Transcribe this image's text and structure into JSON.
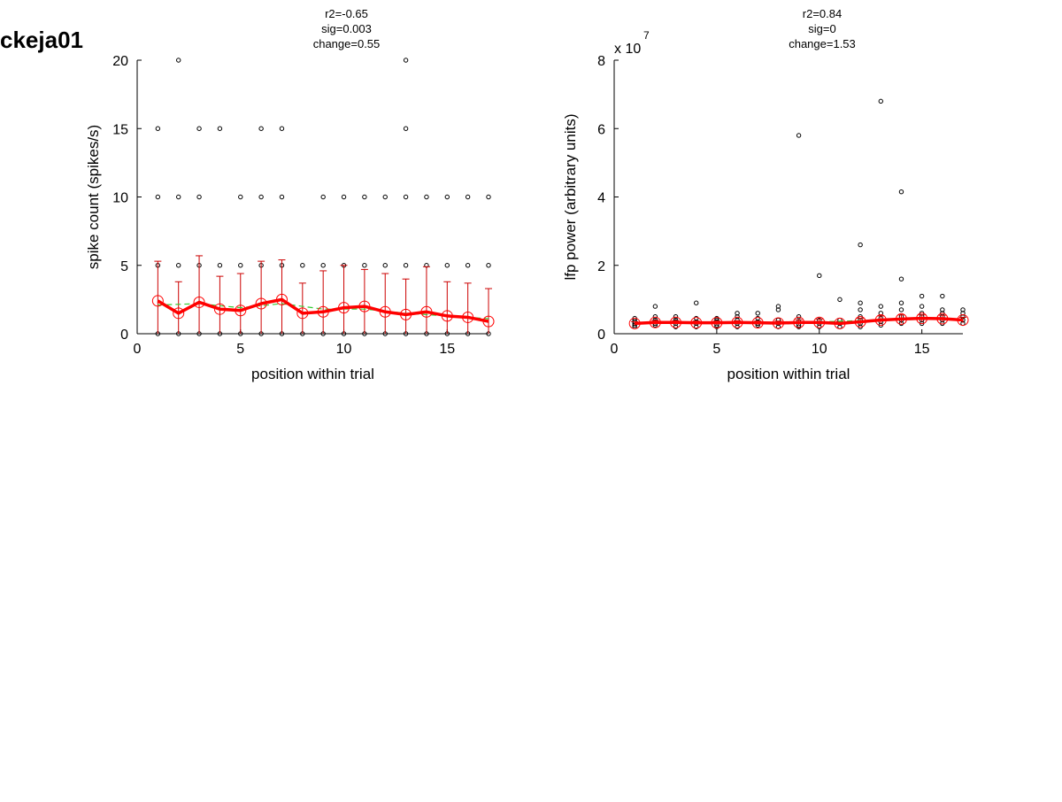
{
  "figure_label": "ckeja01",
  "colors": {
    "points": "#000000",
    "mean_line": "#ff0000",
    "errorbar": "#cc0000",
    "fit_line": "#33cc33"
  },
  "chart_data": [
    {
      "type": "scatter",
      "title_lines": [
        "r2=-0.65",
        "sig=0.003",
        "change=0.55"
      ],
      "xlabel": "position within trial",
      "ylabel": "spike count (spikes/s)",
      "xlim": [
        0,
        17
      ],
      "ylim": [
        0,
        20
      ],
      "xticks": [
        0,
        5,
        10,
        15
      ],
      "yticks": [
        0,
        5,
        10,
        15,
        20
      ],
      "tick_labels_x": [
        "0",
        "5",
        "10",
        "15"
      ],
      "tick_labels_y": [
        "0",
        "5",
        "10",
        "15",
        "20"
      ],
      "points": [
        {
          "x": 1,
          "y": [
            0,
            5,
            10,
            15
          ]
        },
        {
          "x": 2,
          "y": [
            0,
            5,
            10,
            20
          ]
        },
        {
          "x": 3,
          "y": [
            0,
            5,
            10,
            15
          ]
        },
        {
          "x": 4,
          "y": [
            0,
            5,
            15
          ]
        },
        {
          "x": 5,
          "y": [
            0,
            5,
            10
          ]
        },
        {
          "x": 6,
          "y": [
            0,
            5,
            10,
            15
          ]
        },
        {
          "x": 7,
          "y": [
            0,
            5,
            10,
            15
          ]
        },
        {
          "x": 8,
          "y": [
            0,
            5
          ]
        },
        {
          "x": 9,
          "y": [
            0,
            5,
            10
          ]
        },
        {
          "x": 10,
          "y": [
            0,
            5,
            10
          ]
        },
        {
          "x": 11,
          "y": [
            0,
            5,
            10
          ]
        },
        {
          "x": 12,
          "y": [
            0,
            5,
            10
          ]
        },
        {
          "x": 13,
          "y": [
            0,
            5,
            10,
            15,
            20
          ]
        },
        {
          "x": 14,
          "y": [
            0,
            5,
            10
          ]
        },
        {
          "x": 15,
          "y": [
            0,
            5,
            10
          ]
        },
        {
          "x": 16,
          "y": [
            0,
            5,
            10
          ]
        },
        {
          "x": 17,
          "y": [
            0,
            5,
            10
          ]
        }
      ],
      "means": [
        {
          "x": 1,
          "y": 2.4,
          "err": 2.9
        },
        {
          "x": 2,
          "y": 1.5,
          "err": 2.3
        },
        {
          "x": 3,
          "y": 2.3,
          "err": 3.4
        },
        {
          "x": 4,
          "y": 1.8,
          "err": 2.4
        },
        {
          "x": 5,
          "y": 1.7,
          "err": 2.7
        },
        {
          "x": 6,
          "y": 2.2,
          "err": 3.1
        },
        {
          "x": 7,
          "y": 2.5,
          "err": 2.9
        },
        {
          "x": 8,
          "y": 1.5,
          "err": 2.2
        },
        {
          "x": 9,
          "y": 1.6,
          "err": 3.0
        },
        {
          "x": 10,
          "y": 1.9,
          "err": 3.1
        },
        {
          "x": 11,
          "y": 2.0,
          "err": 2.7
        },
        {
          "x": 12,
          "y": 1.6,
          "err": 2.8
        },
        {
          "x": 13,
          "y": 1.4,
          "err": 2.6
        },
        {
          "x": 14,
          "y": 1.6,
          "err": 3.3
        },
        {
          "x": 15,
          "y": 1.3,
          "err": 2.5
        },
        {
          "x": 16,
          "y": 1.2,
          "err": 2.5
        },
        {
          "x": 17,
          "y": 0.9,
          "err": 2.4
        }
      ],
      "fit": [
        {
          "x": 1,
          "y": 2.1
        },
        {
          "x": 3,
          "y": 2.2
        },
        {
          "x": 5,
          "y": 1.9
        },
        {
          "x": 7,
          "y": 2.2
        },
        {
          "x": 9,
          "y": 1.8
        },
        {
          "x": 11,
          "y": 1.8
        },
        {
          "x": 13,
          "y": 1.5
        },
        {
          "x": 15,
          "y": 1.3
        },
        {
          "x": 17,
          "y": 1.1
        }
      ]
    },
    {
      "type": "scatter",
      "title_lines": [
        "r2=0.84",
        "sig=0",
        "change=1.53"
      ],
      "xlabel": "position within trial",
      "ylabel": "lfp power (arbitrary units)",
      "exponent_label": "x 10",
      "exponent": "7",
      "xlim": [
        0,
        17
      ],
      "ylim": [
        0,
        8
      ],
      "xticks": [
        0,
        5,
        10,
        15
      ],
      "yticks": [
        0,
        2,
        4,
        6,
        8
      ],
      "tick_labels_x": [
        "0",
        "5",
        "10",
        "15"
      ],
      "tick_labels_y": [
        "0",
        "2",
        "4",
        "6",
        "8"
      ],
      "points": [
        {
          "x": 1,
          "y": [
            0.2,
            0.25,
            0.3,
            0.35,
            0.4,
            0.45
          ]
        },
        {
          "x": 2,
          "y": [
            0.25,
            0.3,
            0.35,
            0.4,
            0.5,
            0.8
          ]
        },
        {
          "x": 3,
          "y": [
            0.2,
            0.3,
            0.35,
            0.4,
            0.5
          ]
        },
        {
          "x": 4,
          "y": [
            0.2,
            0.3,
            0.35,
            0.45,
            0.9
          ]
        },
        {
          "x": 5,
          "y": [
            0.2,
            0.25,
            0.35,
            0.4,
            0.45
          ]
        },
        {
          "x": 6,
          "y": [
            0.2,
            0.3,
            0.4,
            0.5,
            0.6
          ]
        },
        {
          "x": 7,
          "y": [
            0.25,
            0.3,
            0.35,
            0.45,
            0.6
          ]
        },
        {
          "x": 8,
          "y": [
            0.2,
            0.3,
            0.4,
            0.7,
            0.8
          ]
        },
        {
          "x": 9,
          "y": [
            0.2,
            0.25,
            0.35,
            0.5,
            5.8
          ]
        },
        {
          "x": 10,
          "y": [
            0.2,
            0.3,
            0.4,
            1.7
          ]
        },
        {
          "x": 11,
          "y": [
            0.2,
            0.3,
            0.4,
            1.0
          ]
        },
        {
          "x": 12,
          "y": [
            0.2,
            0.3,
            0.4,
            0.5,
            0.7,
            0.9,
            2.6
          ]
        },
        {
          "x": 13,
          "y": [
            0.25,
            0.35,
            0.45,
            0.6,
            0.8,
            6.8
          ]
        },
        {
          "x": 14,
          "y": [
            0.3,
            0.4,
            0.5,
            0.7,
            0.9,
            1.6,
            4.15
          ]
        },
        {
          "x": 15,
          "y": [
            0.3,
            0.4,
            0.5,
            0.6,
            0.8,
            1.1
          ]
        },
        {
          "x": 16,
          "y": [
            0.3,
            0.4,
            0.5,
            0.6,
            0.7,
            1.1
          ]
        },
        {
          "x": 17,
          "y": [
            0.3,
            0.4,
            0.5,
            0.6,
            0.7
          ]
        }
      ],
      "means": [
        {
          "x": 1,
          "y": 0.3,
          "err": 0.05
        },
        {
          "x": 2,
          "y": 0.33,
          "err": 0.06
        },
        {
          "x": 3,
          "y": 0.33,
          "err": 0.05
        },
        {
          "x": 4,
          "y": 0.32,
          "err": 0.05
        },
        {
          "x": 5,
          "y": 0.32,
          "err": 0.05
        },
        {
          "x": 6,
          "y": 0.33,
          "err": 0.05
        },
        {
          "x": 7,
          "y": 0.32,
          "err": 0.05
        },
        {
          "x": 8,
          "y": 0.31,
          "err": 0.06
        },
        {
          "x": 9,
          "y": 0.33,
          "err": 0.08
        },
        {
          "x": 10,
          "y": 0.33,
          "err": 0.1
        },
        {
          "x": 11,
          "y": 0.3,
          "err": 0.06
        },
        {
          "x": 12,
          "y": 0.35,
          "err": 0.1
        },
        {
          "x": 13,
          "y": 0.4,
          "err": 0.12
        },
        {
          "x": 14,
          "y": 0.43,
          "err": 0.12
        },
        {
          "x": 15,
          "y": 0.45,
          "err": 0.1
        },
        {
          "x": 16,
          "y": 0.44,
          "err": 0.1
        },
        {
          "x": 17,
          "y": 0.4,
          "err": 0.08
        }
      ],
      "fit": [
        {
          "x": 1,
          "y": 0.3
        },
        {
          "x": 5,
          "y": 0.31
        },
        {
          "x": 9,
          "y": 0.33
        },
        {
          "x": 13,
          "y": 0.4
        },
        {
          "x": 17,
          "y": 0.44
        }
      ]
    }
  ]
}
